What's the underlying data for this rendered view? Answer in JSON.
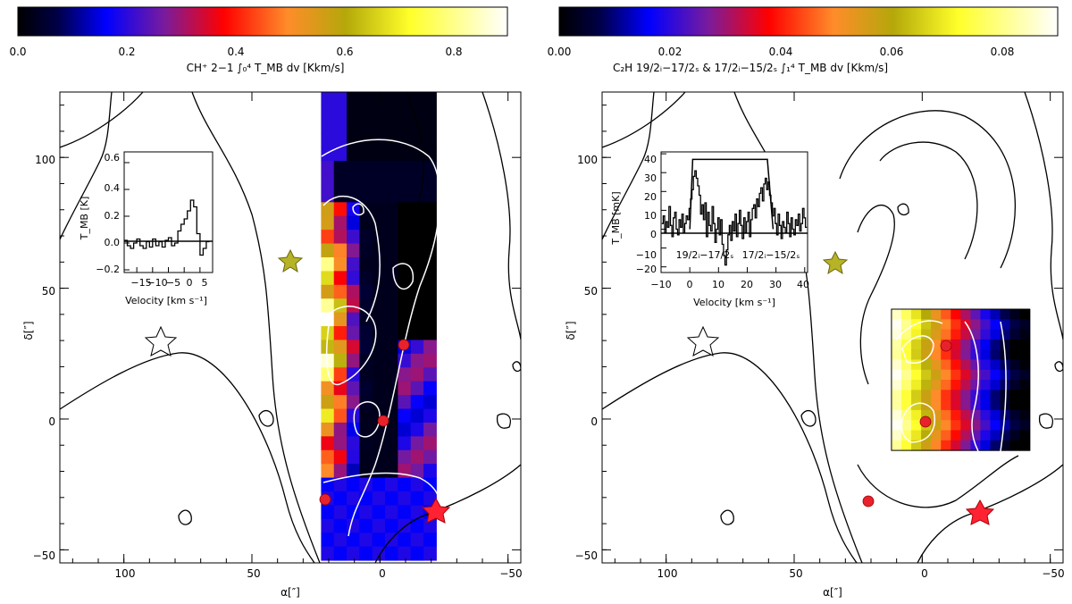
{
  "chart_data": [
    {
      "type": "heatmap",
      "colorbar": {
        "min": 0.0,
        "max": 0.9,
        "ticks": [
          "0.0",
          "0.2",
          "0.4",
          "0.6",
          "0.8"
        ],
        "label": "CH⁺ 2−1   ∫₀⁴ T_MB dv [Kkm/s]"
      },
      "xlabel": "α[″]",
      "ylabel": "δ[″]",
      "xlim": [
        125,
        -55
      ],
      "ylim": [
        -55,
        125
      ],
      "xticks": [
        "100",
        "50",
        "0",
        "−50"
      ],
      "yticks": [
        "−50",
        "0",
        "50",
        "100"
      ],
      "map_extent": {
        "x": [
          23,
          -22
        ],
        "y": [
          -54,
          125
        ]
      },
      "markers": {
        "dots": [
          [
            22,
            -30
          ],
          [
            0,
            0
          ],
          [
            -8,
            29
          ]
        ],
        "red_star": [
          -20,
          -34
        ],
        "yellow_star": [
          35,
          60
        ],
        "open_star": [
          85,
          28
        ]
      },
      "inset": {
        "xlabel": "Velocity [km s⁻¹]",
        "ylabel": "T_MB [K]",
        "xticks": [
          "−15",
          "−10",
          "−5",
          "0",
          "5"
        ],
        "yticks": [
          "−0.2",
          "0.0",
          "0.2",
          "0.4",
          "0.6"
        ],
        "xlim": [
          -19,
          9
        ],
        "ylim": [
          -0.22,
          0.68
        ],
        "spectrum": [
          [
            -18.5,
            0.02
          ],
          [
            -17.5,
            -0.02
          ],
          [
            -16.5,
            -0.04
          ],
          [
            -15.5,
            0.0
          ],
          [
            -14.5,
            0.03
          ],
          [
            -13.5,
            -0.02
          ],
          [
            -12.5,
            -0.04
          ],
          [
            -11.5,
            0.01
          ],
          [
            -10.5,
            -0.03
          ],
          [
            -9.5,
            0.03
          ],
          [
            -8.5,
            -0.02
          ],
          [
            -7.5,
            0.01
          ],
          [
            -6.5,
            -0.03
          ],
          [
            -5.5,
            0.02
          ],
          [
            -4.5,
            0.04
          ],
          [
            -3.5,
            -0.02
          ],
          [
            -2.5,
            0.0
          ],
          [
            -1.5,
            0.09
          ],
          [
            -0.5,
            0.14
          ],
          [
            0.5,
            0.18
          ],
          [
            1.5,
            0.24
          ],
          [
            2.5,
            0.32
          ],
          [
            3.5,
            0.27
          ],
          [
            4.5,
            0.07
          ],
          [
            5.5,
            -0.09
          ],
          [
            6.5,
            -0.04
          ],
          [
            7.5,
            0.01
          ]
        ]
      }
    },
    {
      "type": "heatmap",
      "colorbar": {
        "min": 0.0,
        "max": 0.09,
        "ticks": [
          "0.00",
          "0.02",
          "0.04",
          "0.06",
          "0.08"
        ],
        "label": "C₂H 19/2ᵢ−17/2ₛ & 17/2ᵢ−15/2ₛ  ∫₁⁴ T_MB dv [Kkm/s]"
      },
      "xlabel": "α[″]",
      "ylabel": "δ[″]",
      "xlim": [
        125,
        -55
      ],
      "ylim": [
        -55,
        125
      ],
      "xticks": [
        "100",
        "50",
        "0",
        "−50"
      ],
      "yticks": [
        "−50",
        "0",
        "50",
        "100"
      ],
      "map_extent": {
        "x": [
          12,
          -42
        ],
        "y": [
          -12,
          42
        ]
      },
      "markers": {
        "dots": [
          [
            22,
            -30
          ],
          [
            0,
            0
          ],
          [
            -8,
            29
          ]
        ],
        "red_star": [
          -20,
          -34
        ],
        "yellow_star": [
          35,
          60
        ],
        "open_star": [
          85,
          28
        ]
      },
      "inset": {
        "xlabel": "Velocity [km s⁻¹]",
        "ylabel": "T_MB [mK]",
        "xticks": [
          "−10",
          "0",
          "10",
          "20",
          "30",
          "40"
        ],
        "yticks": [
          "−20",
          "−10",
          "0",
          "10",
          "20",
          "30",
          "40"
        ],
        "xlim": [
          -10,
          41
        ],
        "ylim": [
          -23,
          41
        ],
        "annotations": [
          "19/2ᵢ−17/2ₛ",
          "17/2ᵢ−15/2ₛ"
        ],
        "spectrum": [
          [
            -9.5,
            3
          ],
          [
            -9,
            7
          ],
          [
            -8.5,
            -2
          ],
          [
            -8,
            4
          ],
          [
            -7.5,
            1
          ],
          [
            -7,
            12
          ],
          [
            -6.5,
            2
          ],
          [
            -6,
            -4
          ],
          [
            -5.5,
            6
          ],
          [
            -5,
            9
          ],
          [
            -4.5,
            0
          ],
          [
            -4,
            -3
          ],
          [
            -3.5,
            5
          ],
          [
            -3,
            1
          ],
          [
            -2.5,
            8
          ],
          [
            -2,
            -2
          ],
          [
            -1.5,
            3
          ],
          [
            -1,
            7
          ],
          [
            -0.5,
            5
          ],
          [
            0,
            11
          ],
          [
            0.5,
            16
          ],
          [
            1,
            21
          ],
          [
            1.5,
            28
          ],
          [
            2,
            31
          ],
          [
            2.5,
            27
          ],
          [
            3,
            23
          ],
          [
            3.5,
            18
          ],
          [
            4,
            8
          ],
          [
            4.5,
            13
          ],
          [
            5,
            5
          ],
          [
            5.5,
            14
          ],
          [
            6,
            -4
          ],
          [
            6.5,
            9
          ],
          [
            7,
            2
          ],
          [
            7.5,
            -1
          ],
          [
            8,
            12
          ],
          [
            8.5,
            3
          ],
          [
            9,
            -7
          ],
          [
            9.5,
            0
          ],
          [
            10,
            6
          ],
          [
            10.5,
            -3
          ],
          [
            11,
            5
          ],
          [
            11.5,
            -8
          ],
          [
            12,
            -14
          ],
          [
            12.5,
            -19
          ],
          [
            13,
            -11
          ],
          [
            13.5,
            -3
          ],
          [
            14,
            2
          ],
          [
            14.5,
            -6
          ],
          [
            15,
            4
          ],
          [
            15.5,
            -1
          ],
          [
            16,
            8
          ],
          [
            16.5,
            -4
          ],
          [
            17,
            3
          ],
          [
            17.5,
            10
          ],
          [
            18,
            2
          ],
          [
            18.5,
            -5
          ],
          [
            19,
            6
          ],
          [
            19.5,
            -2
          ],
          [
            20,
            4
          ],
          [
            20.5,
            9
          ],
          [
            21,
            -4
          ],
          [
            21.5,
            5
          ],
          [
            22,
            11
          ],
          [
            22.5,
            13
          ],
          [
            23,
            6
          ],
          [
            23.5,
            16
          ],
          [
            24,
            12
          ],
          [
            24.5,
            19
          ],
          [
            25,
            22
          ],
          [
            25.5,
            15
          ],
          [
            26,
            24
          ],
          [
            26.5,
            27
          ],
          [
            27,
            21
          ],
          [
            27.5,
            25
          ],
          [
            28,
            18
          ],
          [
            28.5,
            14
          ],
          [
            29,
            7
          ],
          [
            29.5,
            11
          ],
          [
            30,
            3
          ],
          [
            30.5,
            -3
          ],
          [
            31,
            8
          ],
          [
            31.5,
            2
          ],
          [
            32,
            -5
          ],
          [
            32.5,
            4
          ],
          [
            33,
            1
          ],
          [
            33.5,
            -2
          ],
          [
            34,
            9
          ],
          [
            34.5,
            3
          ],
          [
            35,
            -4
          ],
          [
            35.5,
            6
          ],
          [
            36,
            0
          ],
          [
            36.5,
            -3
          ],
          [
            37,
            5
          ],
          [
            37.5,
            2
          ],
          [
            38,
            8
          ],
          [
            38.5,
            -1
          ],
          [
            39,
            3
          ],
          [
            39.5,
            11
          ],
          [
            40,
            6
          ],
          [
            40.5,
            1
          ]
        ],
        "line_profile": [
          [
            0,
            0
          ],
          [
            1,
            37
          ],
          [
            27,
            37
          ],
          [
            29,
            0
          ]
        ]
      }
    }
  ]
}
